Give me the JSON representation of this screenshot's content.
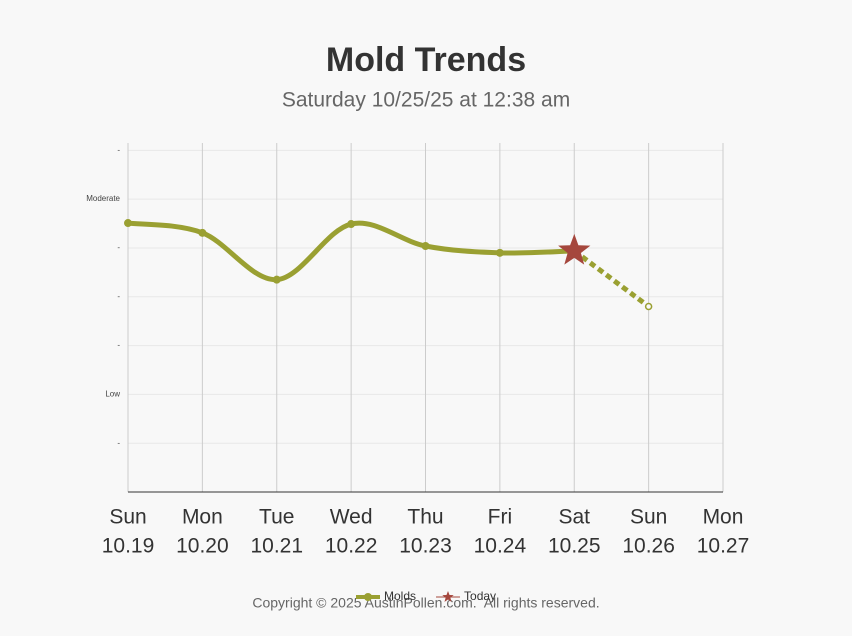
{
  "chart_data": {
    "type": "line",
    "title": "Mold Trends",
    "subtitle": "Saturday 10/25/25 at 12:38 am",
    "categories": [
      "Sun",
      "Mon",
      "Tue",
      "Wed",
      "Thu",
      "Fri",
      "Sat",
      "Sun",
      "Mon"
    ],
    "dates": [
      "10.19",
      "10.20",
      "10.21",
      "10.22",
      "10.23",
      "10.24",
      "10.25",
      "10.26",
      "10.27"
    ],
    "series": [
      {
        "name": "Molds",
        "color": "#9aa032",
        "values": [
          5.51,
          5.31,
          4.35,
          5.49,
          5.04,
          4.9,
          4.94,
          3.8,
          null
        ],
        "dashed_from_index": 6
      },
      {
        "name": "Today",
        "color": "#a5473d",
        "marker": "star",
        "values": [
          null,
          null,
          null,
          null,
          null,
          null,
          4.94,
          null,
          null
        ]
      }
    ],
    "ylim": [
      0,
      7.15
    ],
    "yticks": [
      {
        "value": 1,
        "label": "-"
      },
      {
        "value": 2,
        "label": "Low"
      },
      {
        "value": 3,
        "label": "-"
      },
      {
        "value": 4,
        "label": "-"
      },
      {
        "value": 5,
        "label": "-"
      },
      {
        "value": 6,
        "label": "Moderate"
      },
      {
        "value": 7,
        "label": "-"
      }
    ],
    "grid": true,
    "legend": "bottom",
    "footer": "Copyright © 2025 AustinPollen.com.  All rights reserved."
  }
}
